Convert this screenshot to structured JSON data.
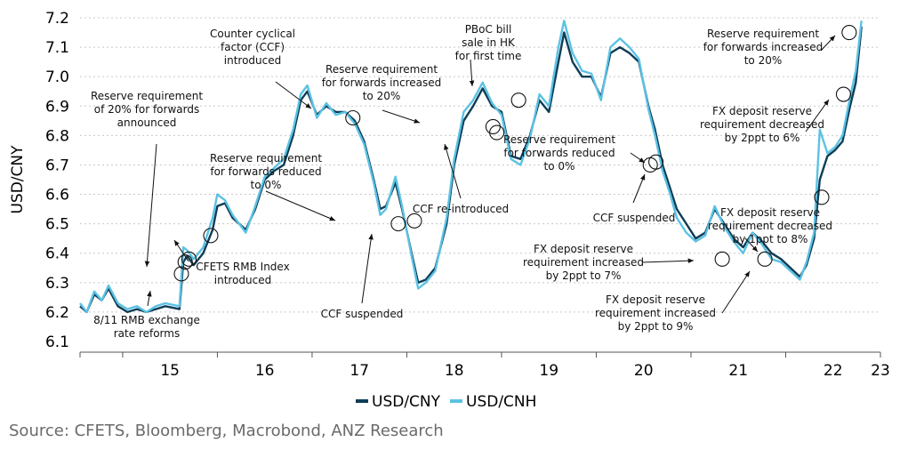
{
  "chart_data": {
    "type": "line",
    "title": "",
    "ylabel": "USD/CNY",
    "xlabel": "",
    "ylim": [
      6.1,
      7.2
    ],
    "xlim": [
      2014.55,
      2023.0
    ],
    "yticks": [
      "6.1",
      "6.2",
      "6.3",
      "6.4",
      "6.5",
      "6.6",
      "6.7",
      "6.8",
      "6.9",
      "7.0",
      "7.1",
      "7.2"
    ],
    "xtick_labels": [
      {
        "x": 2015.5,
        "label": "15"
      },
      {
        "x": 2016.5,
        "label": "16"
      },
      {
        "x": 2017.5,
        "label": "17"
      },
      {
        "x": 2018.5,
        "label": "18"
      },
      {
        "x": 2019.5,
        "label": "19"
      },
      {
        "x": 2020.5,
        "label": "20"
      },
      {
        "x": 2021.5,
        "label": "21"
      },
      {
        "x": 2022.5,
        "label": "22"
      },
      {
        "x": 2023.0,
        "label": "23"
      }
    ],
    "grid": true,
    "legend_position": "bottom",
    "series": [
      {
        "name": "USD/CNY",
        "color": "#0d3d56",
        "points": [
          [
            2014.55,
            6.22
          ],
          [
            2014.62,
            6.2
          ],
          [
            2014.7,
            6.26
          ],
          [
            2014.78,
            6.24
          ],
          [
            2014.85,
            6.28
          ],
          [
            2014.95,
            6.22
          ],
          [
            2015.05,
            6.2
          ],
          [
            2015.15,
            6.21
          ],
          [
            2015.25,
            6.2
          ],
          [
            2015.35,
            6.21
          ],
          [
            2015.45,
            6.22
          ],
          [
            2015.6,
            6.21
          ],
          [
            2015.64,
            6.37
          ],
          [
            2015.68,
            6.39
          ],
          [
            2015.75,
            6.36
          ],
          [
            2015.85,
            6.4
          ],
          [
            2015.95,
            6.48
          ],
          [
            2016.0,
            6.56
          ],
          [
            2016.08,
            6.57
          ],
          [
            2016.16,
            6.52
          ],
          [
            2016.3,
            6.48
          ],
          [
            2016.4,
            6.55
          ],
          [
            2016.5,
            6.65
          ],
          [
            2016.6,
            6.68
          ],
          [
            2016.7,
            6.7
          ],
          [
            2016.8,
            6.8
          ],
          [
            2016.88,
            6.92
          ],
          [
            2016.95,
            6.95
          ],
          [
            2017.05,
            6.87
          ],
          [
            2017.15,
            6.9
          ],
          [
            2017.25,
            6.88
          ],
          [
            2017.35,
            6.88
          ],
          [
            2017.45,
            6.85
          ],
          [
            2017.55,
            6.78
          ],
          [
            2017.65,
            6.65
          ],
          [
            2017.72,
            6.55
          ],
          [
            2017.78,
            6.56
          ],
          [
            2017.88,
            6.64
          ],
          [
            2017.95,
            6.55
          ],
          [
            2018.05,
            6.4
          ],
          [
            2018.12,
            6.3
          ],
          [
            2018.2,
            6.31
          ],
          [
            2018.3,
            6.35
          ],
          [
            2018.42,
            6.5
          ],
          [
            2018.5,
            6.7
          ],
          [
            2018.6,
            6.85
          ],
          [
            2018.7,
            6.9
          ],
          [
            2018.8,
            6.96
          ],
          [
            2018.9,
            6.9
          ],
          [
            2019.0,
            6.88
          ],
          [
            2019.1,
            6.73
          ],
          [
            2019.2,
            6.72
          ],
          [
            2019.3,
            6.8
          ],
          [
            2019.4,
            6.92
          ],
          [
            2019.5,
            6.88
          ],
          [
            2019.6,
            7.05
          ],
          [
            2019.66,
            7.15
          ],
          [
            2019.75,
            7.05
          ],
          [
            2019.85,
            7.0
          ],
          [
            2019.95,
            7.0
          ],
          [
            2020.05,
            6.93
          ],
          [
            2020.15,
            7.08
          ],
          [
            2020.25,
            7.1
          ],
          [
            2020.35,
            7.08
          ],
          [
            2020.45,
            7.05
          ],
          [
            2020.55,
            6.9
          ],
          [
            2020.62,
            6.82
          ],
          [
            2020.7,
            6.7
          ],
          [
            2020.78,
            6.62
          ],
          [
            2020.85,
            6.55
          ],
          [
            2020.95,
            6.5
          ],
          [
            2021.05,
            6.45
          ],
          [
            2021.15,
            6.47
          ],
          [
            2021.25,
            6.55
          ],
          [
            2021.35,
            6.5
          ],
          [
            2021.45,
            6.45
          ],
          [
            2021.55,
            6.42
          ],
          [
            2021.65,
            6.47
          ],
          [
            2021.75,
            6.44
          ],
          [
            2021.85,
            6.4
          ],
          [
            2021.95,
            6.38
          ],
          [
            2022.05,
            6.35
          ],
          [
            2022.15,
            6.32
          ],
          [
            2022.22,
            6.36
          ],
          [
            2022.3,
            6.45
          ],
          [
            2022.36,
            6.65
          ],
          [
            2022.44,
            6.73
          ],
          [
            2022.52,
            6.75
          ],
          [
            2022.6,
            6.78
          ],
          [
            2022.68,
            6.9
          ],
          [
            2022.74,
            6.98
          ],
          [
            2022.8,
            7.17
          ]
        ]
      },
      {
        "name": "USD/CNH",
        "color": "#5bc2e4",
        "points": [
          [
            2014.55,
            6.23
          ],
          [
            2014.62,
            6.2
          ],
          [
            2014.7,
            6.27
          ],
          [
            2014.78,
            6.24
          ],
          [
            2014.85,
            6.29
          ],
          [
            2014.95,
            6.23
          ],
          [
            2015.05,
            6.21
          ],
          [
            2015.15,
            6.22
          ],
          [
            2015.25,
            6.2
          ],
          [
            2015.35,
            6.22
          ],
          [
            2015.45,
            6.23
          ],
          [
            2015.6,
            6.22
          ],
          [
            2015.64,
            6.42
          ],
          [
            2015.68,
            6.41
          ],
          [
            2015.75,
            6.38
          ],
          [
            2015.85,
            6.42
          ],
          [
            2015.95,
            6.52
          ],
          [
            2016.0,
            6.6
          ],
          [
            2016.08,
            6.58
          ],
          [
            2016.16,
            6.53
          ],
          [
            2016.3,
            6.47
          ],
          [
            2016.4,
            6.56
          ],
          [
            2016.5,
            6.66
          ],
          [
            2016.6,
            6.69
          ],
          [
            2016.7,
            6.72
          ],
          [
            2016.8,
            6.82
          ],
          [
            2016.88,
            6.94
          ],
          [
            2016.95,
            6.97
          ],
          [
            2017.05,
            6.86
          ],
          [
            2017.15,
            6.91
          ],
          [
            2017.25,
            6.87
          ],
          [
            2017.35,
            6.88
          ],
          [
            2017.45,
            6.84
          ],
          [
            2017.55,
            6.77
          ],
          [
            2017.65,
            6.64
          ],
          [
            2017.72,
            6.53
          ],
          [
            2017.78,
            6.55
          ],
          [
            2017.88,
            6.66
          ],
          [
            2017.95,
            6.56
          ],
          [
            2018.05,
            6.39
          ],
          [
            2018.12,
            6.28
          ],
          [
            2018.2,
            6.3
          ],
          [
            2018.3,
            6.34
          ],
          [
            2018.42,
            6.52
          ],
          [
            2018.5,
            6.72
          ],
          [
            2018.6,
            6.88
          ],
          [
            2018.7,
            6.92
          ],
          [
            2018.8,
            6.98
          ],
          [
            2018.9,
            6.91
          ],
          [
            2019.0,
            6.87
          ],
          [
            2019.1,
            6.72
          ],
          [
            2019.2,
            6.7
          ],
          [
            2019.3,
            6.79
          ],
          [
            2019.4,
            6.94
          ],
          [
            2019.5,
            6.9
          ],
          [
            2019.6,
            7.1
          ],
          [
            2019.66,
            7.19
          ],
          [
            2019.75,
            7.08
          ],
          [
            2019.85,
            7.02
          ],
          [
            2019.95,
            7.01
          ],
          [
            2020.05,
            6.92
          ],
          [
            2020.15,
            7.1
          ],
          [
            2020.25,
            7.13
          ],
          [
            2020.35,
            7.1
          ],
          [
            2020.45,
            7.06
          ],
          [
            2020.55,
            6.89
          ],
          [
            2020.62,
            6.8
          ],
          [
            2020.7,
            6.68
          ],
          [
            2020.78,
            6.6
          ],
          [
            2020.85,
            6.52
          ],
          [
            2020.95,
            6.47
          ],
          [
            2021.05,
            6.44
          ],
          [
            2021.15,
            6.46
          ],
          [
            2021.25,
            6.56
          ],
          [
            2021.35,
            6.49
          ],
          [
            2021.45,
            6.44
          ],
          [
            2021.55,
            6.4
          ],
          [
            2021.65,
            6.47
          ],
          [
            2021.75,
            6.43
          ],
          [
            2021.85,
            6.38
          ],
          [
            2021.95,
            6.37
          ],
          [
            2022.05,
            6.34
          ],
          [
            2022.15,
            6.31
          ],
          [
            2022.22,
            6.37
          ],
          [
            2022.3,
            6.47
          ],
          [
            2022.36,
            6.82
          ],
          [
            2022.44,
            6.74
          ],
          [
            2022.52,
            6.76
          ],
          [
            2022.6,
            6.8
          ],
          [
            2022.68,
            6.93
          ],
          [
            2022.74,
            7.02
          ],
          [
            2022.8,
            7.19
          ]
        ]
      }
    ],
    "event_markers": [
      {
        "x": 2015.62,
        "y": 6.33
      },
      {
        "x": 2015.66,
        "y": 6.37
      },
      {
        "x": 2015.7,
        "y": 6.38
      },
      {
        "x": 2015.93,
        "y": 6.46
      },
      {
        "x": 2017.43,
        "y": 6.86
      },
      {
        "x": 2017.91,
        "y": 6.5
      },
      {
        "x": 2018.08,
        "y": 6.51
      },
      {
        "x": 2018.91,
        "y": 6.83
      },
      {
        "x": 2018.95,
        "y": 6.81
      },
      {
        "x": 2019.18,
        "y": 6.92
      },
      {
        "x": 2020.57,
        "y": 6.7
      },
      {
        "x": 2020.63,
        "y": 6.71
      },
      {
        "x": 2021.33,
        "y": 6.38
      },
      {
        "x": 2021.78,
        "y": 6.38
      },
      {
        "x": 2022.38,
        "y": 6.59
      },
      {
        "x": 2022.61,
        "y": 6.94
      },
      {
        "x": 2022.67,
        "y": 7.15
      }
    ],
    "annotations": [
      {
        "lines": [
          "Counter cyclical",
          "factor (CCF)",
          "introduced"
        ]
      },
      {
        "lines": [
          "PBoC bill",
          "sale in HK",
          "for first time"
        ]
      },
      {
        "lines": [
          "Reserve requirement",
          "for forwards increased",
          "to 20%"
        ]
      },
      {
        "lines": [
          "Reserve requirement",
          "for forwards increased",
          "to 20%"
        ]
      },
      {
        "lines": [
          "Reserve requirement",
          "of 20% for forwards",
          "announced"
        ]
      },
      {
        "lines": [
          "FX deposit reserve",
          "requirement decreased",
          "by 2ppt to 6%"
        ]
      },
      {
        "lines": [
          "Reserve requirement",
          "for forwards reduced",
          "to 0%"
        ]
      },
      {
        "lines": [
          "Reserve requirement",
          "for forwards reduced",
          "to 0%"
        ]
      },
      {
        "lines": [
          "CCF re-introduced"
        ]
      },
      {
        "lines": [
          "CCF suspended"
        ]
      },
      {
        "lines": [
          "FX deposit reserve",
          "requirement decreased",
          "by 1ppt to 8%"
        ]
      },
      {
        "lines": [
          "CFETS RMB Index",
          "introduced"
        ]
      },
      {
        "lines": [
          "FX deposit reserve",
          "requirement increased",
          "by 2ppt to 7%"
        ]
      },
      {
        "lines": [
          "CCF suspended"
        ]
      },
      {
        "lines": [
          "8/11 RMB exchange",
          "rate reforms"
        ]
      },
      {
        "lines": [
          "FX deposit reserve",
          "requirement increased",
          "by 2ppt to 9%"
        ]
      }
    ]
  },
  "legend": [
    {
      "label": "USD/CNY",
      "color": "#0d3d56"
    },
    {
      "label": "USD/CNH",
      "color": "#5bc2e4"
    }
  ],
  "source": "Source: CFETS, Bloomberg, Macrobond, ANZ Research"
}
